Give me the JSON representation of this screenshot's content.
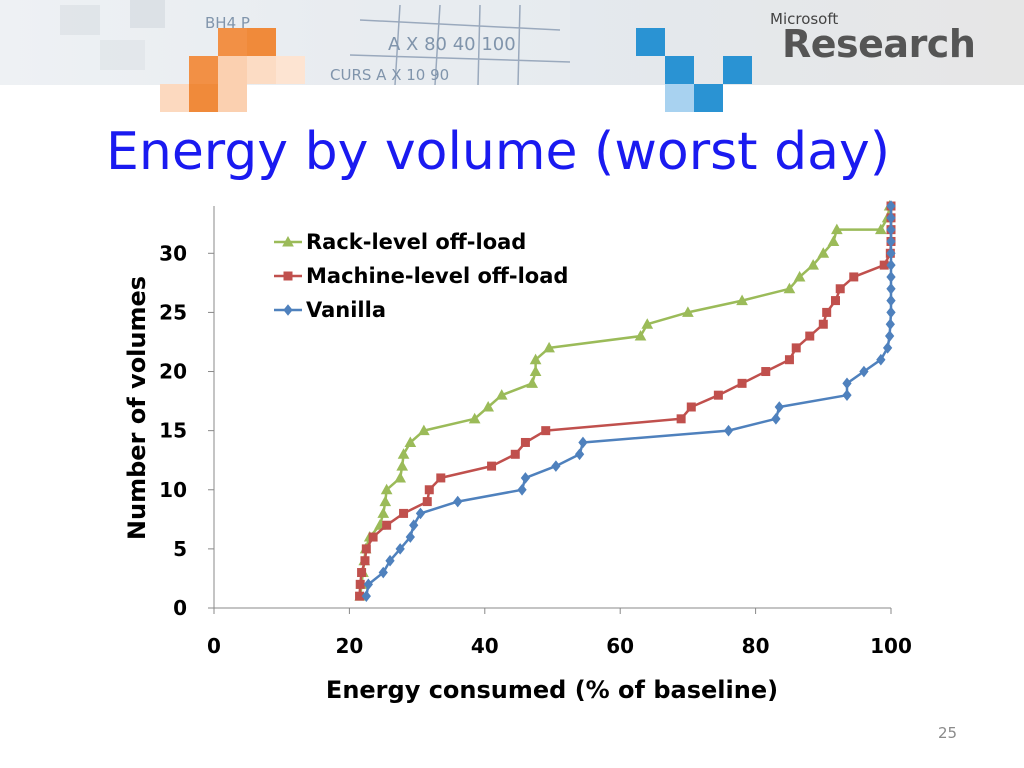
{
  "brand": {
    "small": "Microsoft",
    "big": "Research"
  },
  "slide": {
    "title": "Energy by volume (worst day)",
    "number": "25"
  },
  "colors": {
    "rack": "#9bbb59",
    "machine": "#c0504d",
    "vanilla": "#4f81bd",
    "title": "#1a1af0"
  },
  "chart_data": {
    "type": "line",
    "xlabel": "Energy consumed (% of baseline)",
    "ylabel": "Number of volumes",
    "xlim": [
      0,
      100
    ],
    "ylim": [
      0,
      34
    ],
    "xticks": [
      0,
      20,
      40,
      60,
      80,
      100
    ],
    "yticks": [
      0,
      5,
      10,
      15,
      20,
      25,
      30
    ],
    "legend_position": "top-left",
    "series": [
      {
        "name": "Rack-level off-load",
        "color": "#9bbb59",
        "marker": "triangle",
        "points": [
          [
            21.6,
            1
          ],
          [
            21.8,
            2
          ],
          [
            22,
            3
          ],
          [
            22.2,
            4
          ],
          [
            22.4,
            5
          ],
          [
            23,
            6
          ],
          [
            24.5,
            7
          ],
          [
            25,
            8
          ],
          [
            25.3,
            9
          ],
          [
            25.5,
            10
          ],
          [
            27.5,
            11
          ],
          [
            27.8,
            12
          ],
          [
            28,
            13
          ],
          [
            29,
            14
          ],
          [
            31,
            15
          ],
          [
            38.5,
            16
          ],
          [
            40.5,
            17
          ],
          [
            42.5,
            18
          ],
          [
            47,
            19
          ],
          [
            47.5,
            20
          ],
          [
            47.5,
            21
          ],
          [
            49.5,
            22
          ],
          [
            63,
            23
          ],
          [
            64,
            24
          ],
          [
            70,
            25
          ],
          [
            78,
            26
          ],
          [
            85,
            27
          ],
          [
            86.5,
            28
          ],
          [
            88.5,
            29
          ],
          [
            90,
            30
          ],
          [
            91.5,
            31
          ],
          [
            92,
            32
          ],
          [
            98.5,
            32
          ],
          [
            99.5,
            33
          ],
          [
            99.8,
            34
          ]
        ]
      },
      {
        "name": "Machine-level off-load",
        "color": "#c0504d",
        "marker": "square",
        "points": [
          [
            21.5,
            1
          ],
          [
            21.6,
            2
          ],
          [
            21.8,
            3
          ],
          [
            22.3,
            4
          ],
          [
            22.5,
            5
          ],
          [
            23.5,
            6
          ],
          [
            25.5,
            7
          ],
          [
            28,
            8
          ],
          [
            31.5,
            9
          ],
          [
            31.8,
            10
          ],
          [
            33.5,
            11
          ],
          [
            41,
            12
          ],
          [
            44.5,
            13
          ],
          [
            46,
            14
          ],
          [
            49,
            15
          ],
          [
            69,
            16
          ],
          [
            70.5,
            17
          ],
          [
            74.5,
            18
          ],
          [
            78,
            19
          ],
          [
            81.5,
            20
          ],
          [
            85,
            21
          ],
          [
            86,
            22
          ],
          [
            88,
            23
          ],
          [
            90,
            24
          ],
          [
            90.5,
            25
          ],
          [
            91.8,
            26
          ],
          [
            92.5,
            27
          ],
          [
            94.5,
            28
          ],
          [
            99,
            29
          ],
          [
            99.9,
            30
          ],
          [
            100,
            31
          ],
          [
            100,
            32
          ],
          [
            100,
            33
          ],
          [
            100,
            34
          ]
        ]
      },
      {
        "name": "Vanilla",
        "color": "#4f81bd",
        "marker": "diamond",
        "points": [
          [
            22.5,
            1
          ],
          [
            22.8,
            2
          ],
          [
            25,
            3
          ],
          [
            26,
            4
          ],
          [
            27.5,
            5
          ],
          [
            29,
            6
          ],
          [
            29.5,
            7
          ],
          [
            30.5,
            8
          ],
          [
            36,
            9
          ],
          [
            45.5,
            10
          ],
          [
            46,
            11
          ],
          [
            50.5,
            12
          ],
          [
            54,
            13
          ],
          [
            54.5,
            14
          ],
          [
            76,
            15
          ],
          [
            83,
            16
          ],
          [
            83.5,
            17
          ],
          [
            93.5,
            18
          ],
          [
            93.5,
            19
          ],
          [
            96,
            20
          ],
          [
            98.5,
            21
          ],
          [
            99.5,
            22
          ],
          [
            99.8,
            23
          ],
          [
            99.9,
            24
          ],
          [
            100,
            25
          ],
          [
            100,
            26
          ],
          [
            100,
            27
          ],
          [
            100,
            28
          ],
          [
            100,
            29
          ],
          [
            100,
            30
          ],
          [
            100,
            31
          ],
          [
            100,
            32
          ],
          [
            100,
            33
          ],
          [
            100,
            34
          ]
        ]
      }
    ]
  }
}
